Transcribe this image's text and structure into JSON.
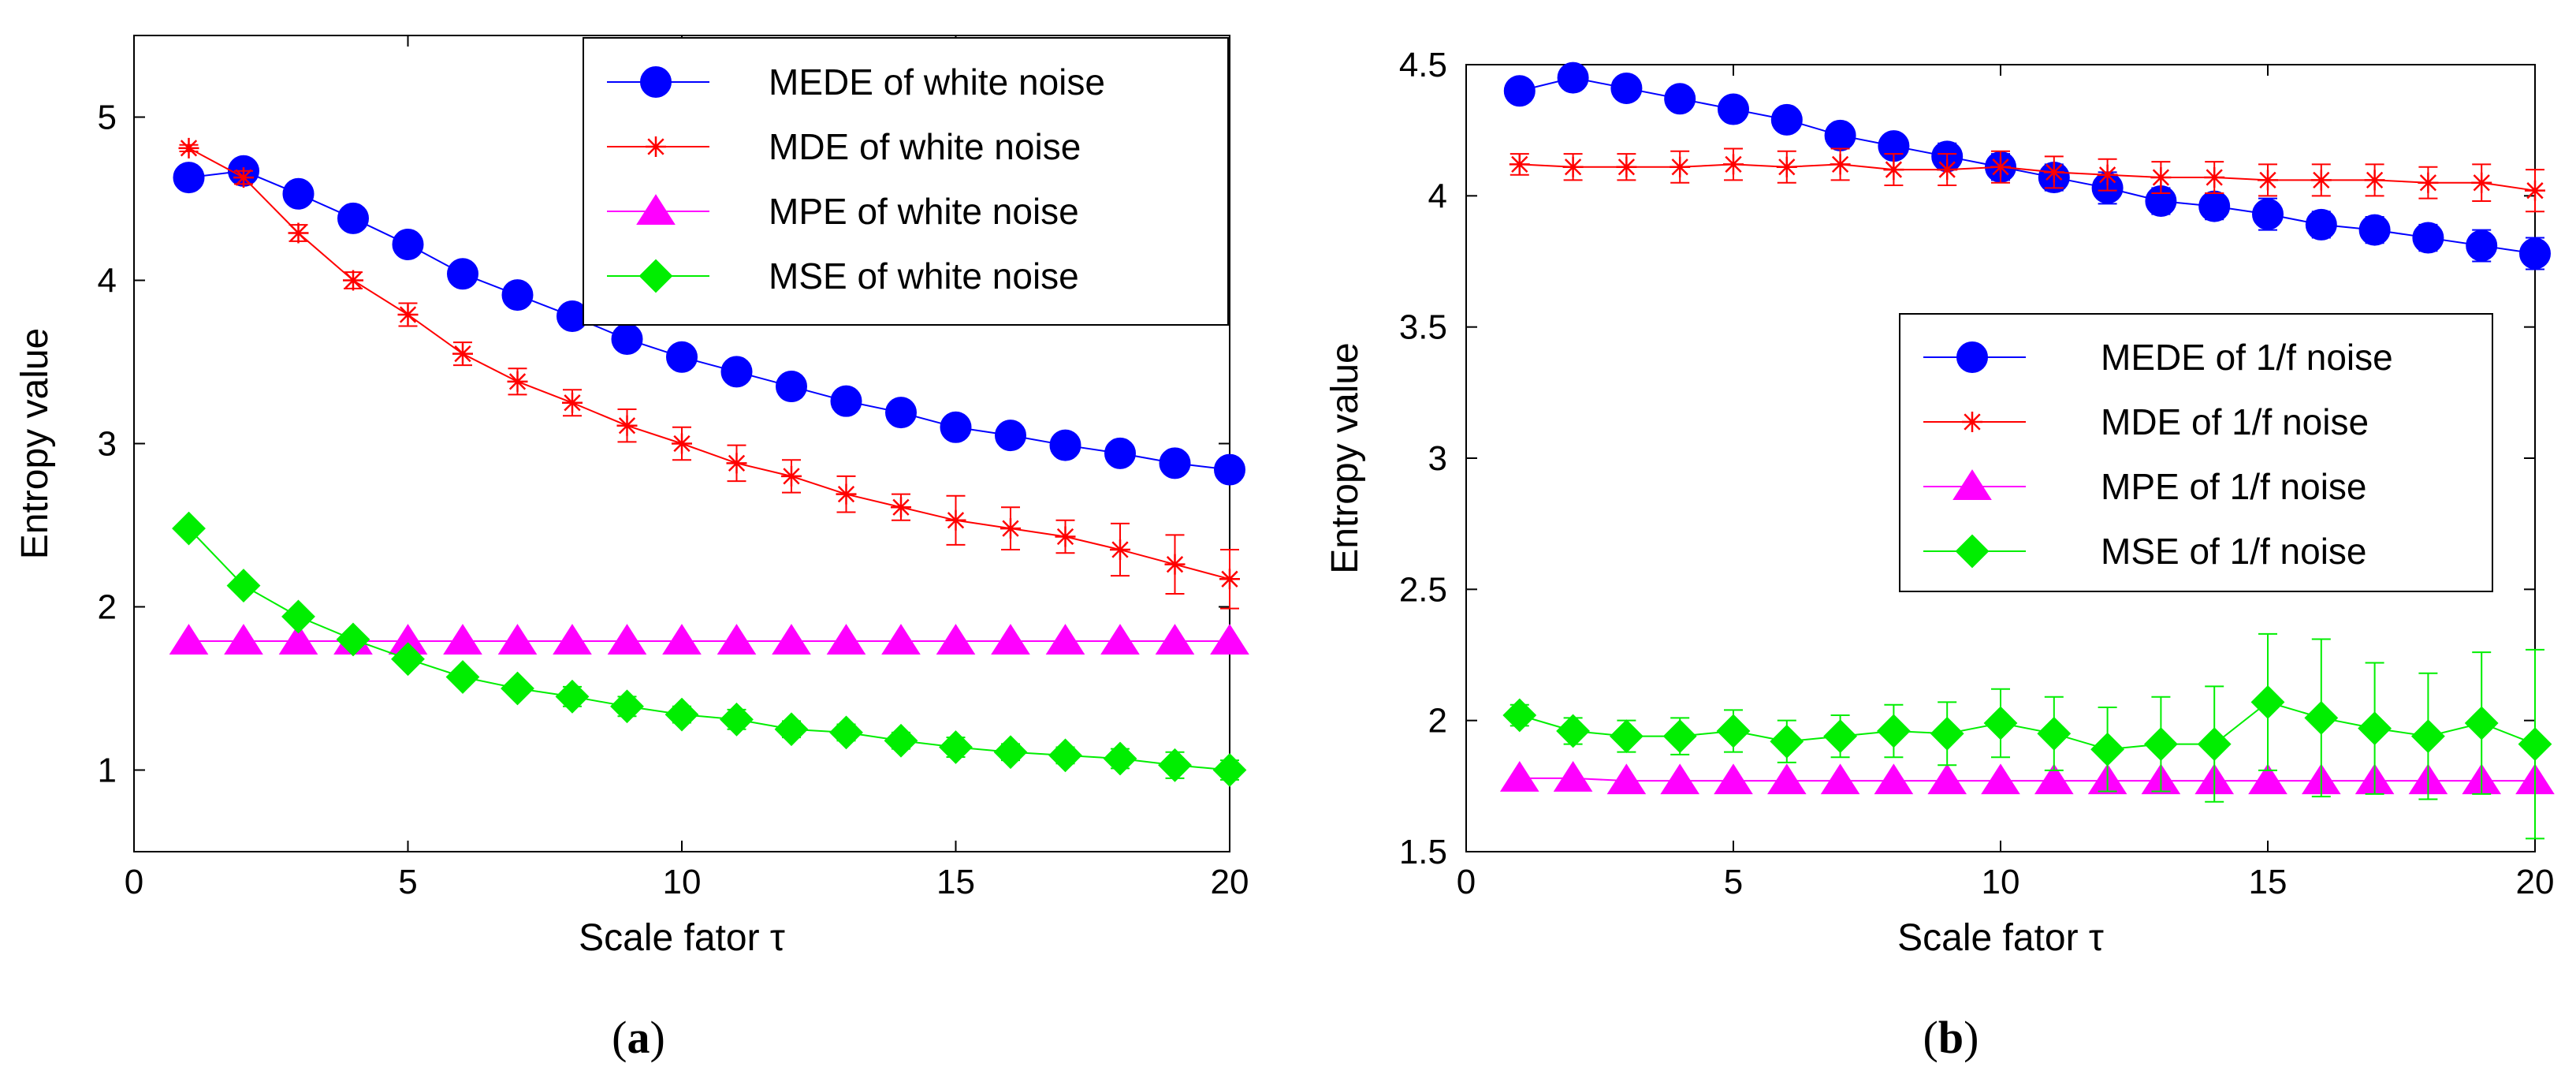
{
  "chart_data": [
    {
      "type": "line",
      "caption_letter": "a",
      "caption_open": "(",
      "caption_close": ")",
      "xlabel": "Scale fator τ",
      "ylabel": "Entropy value",
      "xlim": [
        0,
        20
      ],
      "ylim": [
        0.5,
        5.5
      ],
      "xticks": [
        "0",
        "5",
        "10",
        "15",
        "20"
      ],
      "yticks": [
        "1",
        "2",
        "3",
        "4",
        "5"
      ],
      "legend_position": "top-right",
      "x": [
        1,
        2,
        3,
        4,
        5,
        6,
        7,
        8,
        9,
        10,
        11,
        12,
        13,
        14,
        15,
        16,
        17,
        18,
        19,
        20
      ],
      "series": [
        {
          "name": "MEDE of white noise",
          "color": "#0000ff",
          "marker": "circle",
          "values": [
            4.63,
            4.67,
            4.53,
            4.38,
            4.22,
            4.04,
            3.91,
            3.78,
            3.64,
            3.53,
            3.44,
            3.35,
            3.26,
            3.19,
            3.1,
            3.05,
            2.99,
            2.94,
            2.88,
            2.84
          ],
          "errors": [
            0.03,
            0.03,
            0.03,
            0.03,
            0.03,
            0.03,
            0.03,
            0.03,
            0.03,
            0.03,
            0.03,
            0.04,
            0.04,
            0.04,
            0.04,
            0.04,
            0.05,
            0.05,
            0.05,
            0.06
          ]
        },
        {
          "name": "MDE of white noise",
          "color": "#ff0000",
          "marker": "star",
          "values": [
            4.81,
            4.63,
            4.29,
            4.0,
            3.79,
            3.55,
            3.38,
            3.25,
            3.11,
            3.0,
            2.88,
            2.8,
            2.69,
            2.61,
            2.53,
            2.48,
            2.43,
            2.35,
            2.26,
            2.17
          ],
          "errors": [
            0.02,
            0.04,
            0.05,
            0.05,
            0.07,
            0.07,
            0.08,
            0.08,
            0.1,
            0.1,
            0.11,
            0.1,
            0.11,
            0.08,
            0.15,
            0.13,
            0.1,
            0.16,
            0.18,
            0.18
          ]
        },
        {
          "name": "MPE of white noise",
          "color": "#ff00ff",
          "marker": "triangle",
          "values": [
            1.79,
            1.79,
            1.79,
            1.79,
            1.79,
            1.79,
            1.79,
            1.79,
            1.79,
            1.79,
            1.79,
            1.79,
            1.79,
            1.79,
            1.79,
            1.79,
            1.79,
            1.79,
            1.79,
            1.79
          ],
          "errors": [
            0.005,
            0.005,
            0.005,
            0.005,
            0.005,
            0.005,
            0.005,
            0.005,
            0.005,
            0.005,
            0.005,
            0.005,
            0.005,
            0.005,
            0.005,
            0.005,
            0.005,
            0.005,
            0.005,
            0.005
          ]
        },
        {
          "name": "MSE of white noise",
          "color": "#00ee00",
          "marker": "diamond",
          "values": [
            2.48,
            2.13,
            1.94,
            1.8,
            1.68,
            1.57,
            1.5,
            1.45,
            1.39,
            1.34,
            1.31,
            1.25,
            1.23,
            1.18,
            1.14,
            1.11,
            1.09,
            1.07,
            1.03,
            1.0
          ],
          "errors": [
            0.02,
            0.02,
            0.03,
            0.03,
            0.04,
            0.04,
            0.04,
            0.06,
            0.06,
            0.05,
            0.06,
            0.05,
            0.05,
            0.05,
            0.06,
            0.05,
            0.05,
            0.06,
            0.08,
            0.06
          ]
        }
      ]
    },
    {
      "type": "line",
      "caption_letter": "b",
      "caption_open": "(",
      "caption_close": ")",
      "xlabel": "Scale fator τ",
      "ylabel": "Entropy value",
      "xlim": [
        0,
        20
      ],
      "ylim": [
        1.5,
        4.5
      ],
      "xticks": [
        "0",
        "5",
        "10",
        "15",
        "20"
      ],
      "yticks": [
        "1.5",
        "2",
        "2.5",
        "3",
        "3.5",
        "4",
        "4.5"
      ],
      "legend_position": "center-right",
      "x": [
        1,
        2,
        3,
        4,
        5,
        6,
        7,
        8,
        9,
        10,
        11,
        12,
        13,
        14,
        15,
        16,
        17,
        18,
        19,
        20
      ],
      "series": [
        {
          "name": "MEDE of 1/f noise",
          "color": "#0000ff",
          "marker": "circle",
          "values": [
            4.4,
            4.45,
            4.41,
            4.37,
            4.33,
            4.29,
            4.23,
            4.19,
            4.15,
            4.11,
            4.07,
            4.03,
            3.98,
            3.96,
            3.93,
            3.89,
            3.87,
            3.84,
            3.81,
            3.78
          ],
          "errors": [
            0.02,
            0.02,
            0.03,
            0.03,
            0.03,
            0.03,
            0.04,
            0.04,
            0.05,
            0.05,
            0.05,
            0.06,
            0.05,
            0.05,
            0.06,
            0.05,
            0.05,
            0.05,
            0.06,
            0.06
          ]
        },
        {
          "name": "MDE of 1/f noise",
          "color": "#ff0000",
          "marker": "star",
          "values": [
            4.12,
            4.11,
            4.11,
            4.11,
            4.12,
            4.11,
            4.12,
            4.1,
            4.1,
            4.11,
            4.09,
            4.08,
            4.07,
            4.07,
            4.06,
            4.06,
            4.06,
            4.05,
            4.05,
            4.02
          ],
          "errors": [
            0.04,
            0.05,
            0.05,
            0.06,
            0.06,
            0.06,
            0.06,
            0.06,
            0.06,
            0.06,
            0.06,
            0.06,
            0.06,
            0.06,
            0.06,
            0.06,
            0.06,
            0.06,
            0.07,
            0.08
          ]
        },
        {
          "name": "MPE of 1/f noise",
          "color": "#ff00ff",
          "marker": "triangle",
          "values": [
            1.78,
            1.78,
            1.77,
            1.77,
            1.77,
            1.77,
            1.77,
            1.77,
            1.77,
            1.77,
            1.77,
            1.77,
            1.77,
            1.77,
            1.77,
            1.77,
            1.77,
            1.77,
            1.77,
            1.77
          ],
          "errors": [
            0.005,
            0.005,
            0.005,
            0.005,
            0.005,
            0.005,
            0.005,
            0.005,
            0.005,
            0.005,
            0.005,
            0.005,
            0.005,
            0.005,
            0.005,
            0.005,
            0.005,
            0.005,
            0.005,
            0.005
          ]
        },
        {
          "name": "MSE of 1/f noise",
          "color": "#00ee00",
          "marker": "diamond",
          "values": [
            2.02,
            1.96,
            1.94,
            1.94,
            1.96,
            1.92,
            1.94,
            1.96,
            1.95,
            1.99,
            1.95,
            1.89,
            1.91,
            1.91,
            2.07,
            2.01,
            1.97,
            1.94,
            1.99,
            1.91
          ],
          "errors": [
            0.04,
            0.05,
            0.06,
            0.07,
            0.08,
            0.08,
            0.08,
            0.1,
            0.12,
            0.13,
            0.14,
            0.16,
            0.18,
            0.22,
            0.26,
            0.3,
            0.25,
            0.24,
            0.27,
            0.36
          ]
        }
      ]
    }
  ]
}
